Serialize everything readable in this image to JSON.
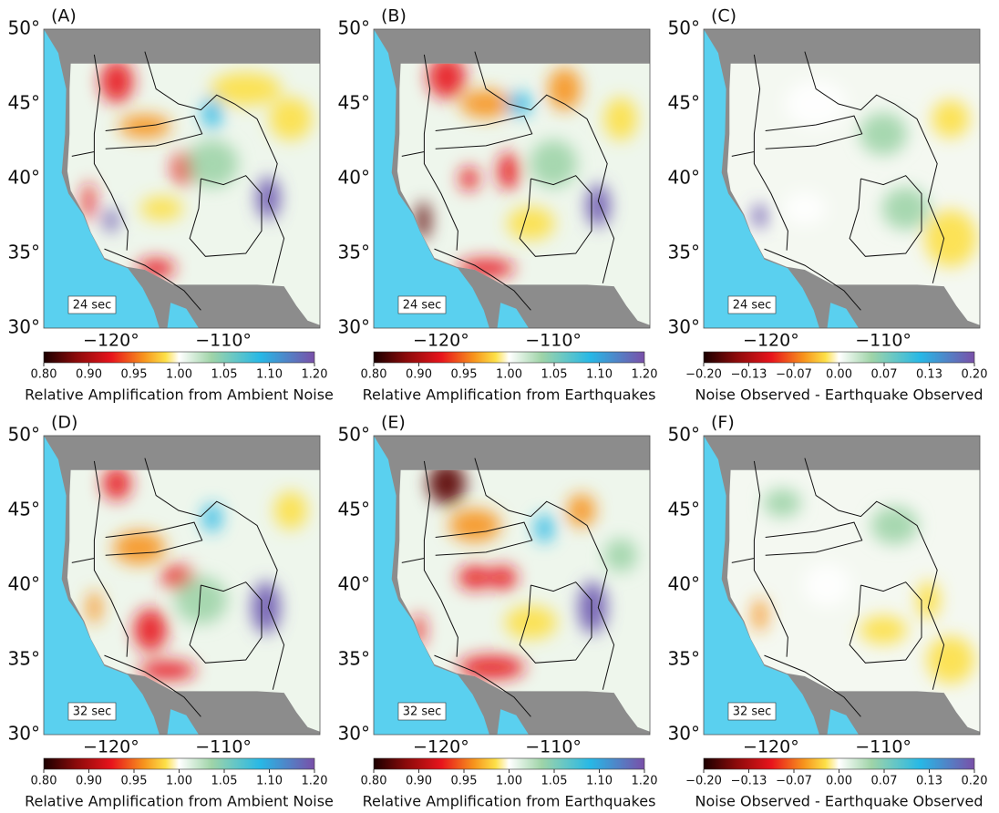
{
  "panels": [
    {
      "label": "(A)",
      "period": "24 sec",
      "lat_labels": [
        "50°",
        "45°",
        "40°",
        "35°",
        "30°"
      ],
      "lon_labels": [
        "−120°",
        "−110°"
      ],
      "colorbar": {
        "ticks": [
          "0.80",
          "0.90",
          "0.95",
          "1.00",
          "1.05",
          "1.10",
          "1.20"
        ],
        "title": "Relative Amplification from Ambient Noise"
      }
    },
    {
      "label": "(B)",
      "period": "24 sec",
      "lat_labels": [
        "50°",
        "45°",
        "40°",
        "35°",
        "30°"
      ],
      "lon_labels": [
        "−120°",
        "−110°"
      ],
      "colorbar": {
        "ticks": [
          "0.80",
          "0.90",
          "0.95",
          "1.00",
          "1.05",
          "1.10",
          "1.20"
        ],
        "title": "Relative Amplification from Earthquakes"
      }
    },
    {
      "label": "(C)",
      "period": "24 sec",
      "lat_labels": [
        "50°",
        "45°",
        "40°",
        "35°",
        "30°"
      ],
      "lon_labels": [
        "−120°",
        "−110°"
      ],
      "colorbar": {
        "ticks": [
          "−0.20",
          "−0.13",
          "−0.07",
          "0.00",
          "0.07",
          "0.13",
          "0.20"
        ],
        "title": "Noise Observed - Earthquake Observed"
      }
    },
    {
      "label": "(D)",
      "period": "32 sec",
      "lat_labels": [
        "50°",
        "45°",
        "40°",
        "35°",
        "30°"
      ],
      "lon_labels": [
        "−120°",
        "−110°"
      ],
      "colorbar": {
        "ticks": [
          "0.80",
          "0.90",
          "0.95",
          "1.00",
          "1.05",
          "1.10",
          "1.20"
        ],
        "title": "Relative Amplification from Ambient Noise"
      }
    },
    {
      "label": "(E)",
      "period": "32 sec",
      "lat_labels": [
        "50°",
        "45°",
        "40°",
        "35°",
        "30°"
      ],
      "lon_labels": [
        "−120°",
        "−110°"
      ],
      "colorbar": {
        "ticks": [
          "0.80",
          "0.90",
          "0.95",
          "1.00",
          "1.05",
          "1.10",
          "1.20"
        ],
        "title": "Relative Amplification from Earthquakes"
      }
    },
    {
      "label": "(F)",
      "period": "32 sec",
      "lat_labels": [
        "50°",
        "45°",
        "40°",
        "35°",
        "30°"
      ],
      "lon_labels": [
        "−120°",
        "−110°"
      ],
      "colorbar": {
        "ticks": [
          "−0.20",
          "−0.13",
          "−0.07",
          "0.00",
          "0.07",
          "0.13",
          "0.20"
        ],
        "title": "Noise Observed - Earthquake Observed"
      }
    }
  ]
}
